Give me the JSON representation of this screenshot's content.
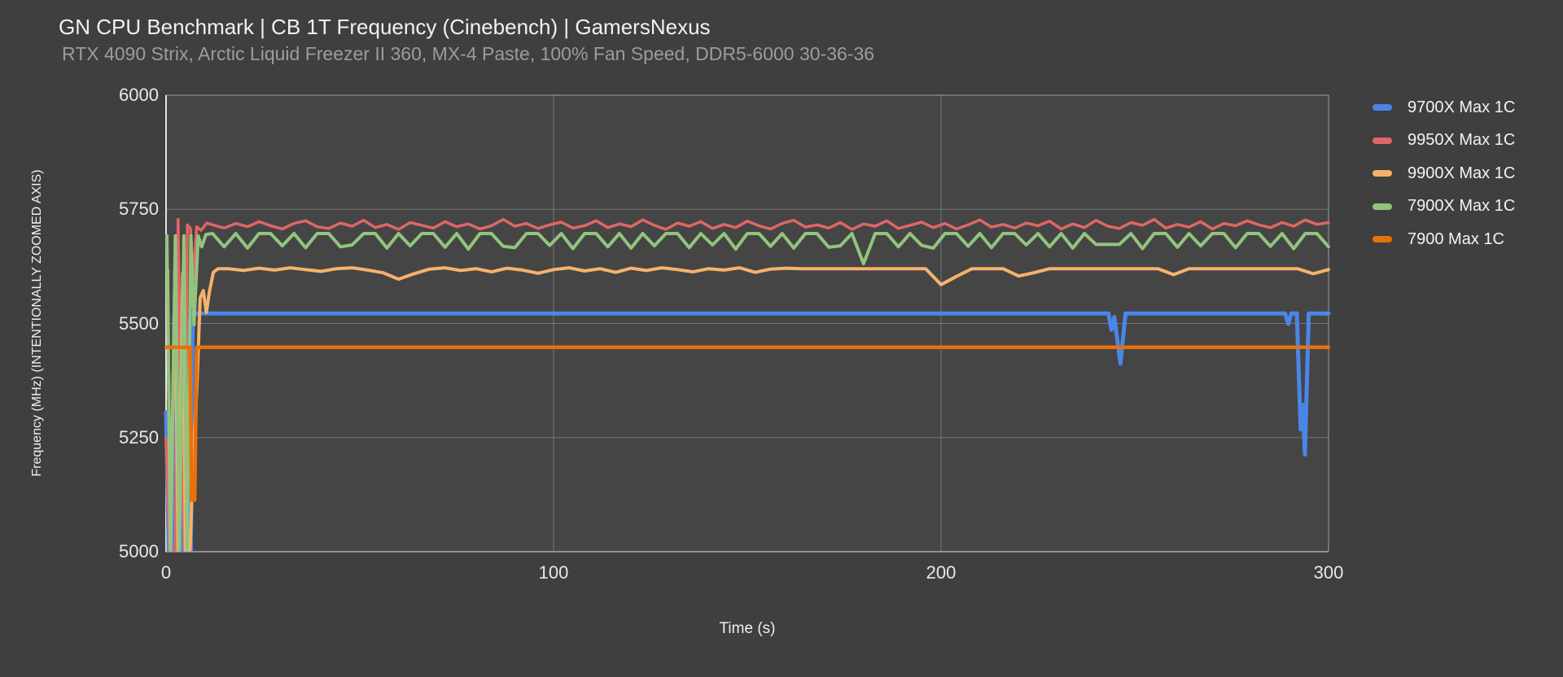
{
  "header": {
    "title": "GN CPU Benchmark | CB 1T Frequency (Cinebench) | GamersNexus",
    "subtitle": "RTX 4090 Strix, Arctic Liquid Freezer II 360, MX-4 Paste, 100% Fan Speed, DDR5-6000 30-36-36"
  },
  "colors": {
    "background": "#3f3f3f",
    "plot_background": "#454545",
    "gridline": "#757575",
    "border": "#9e9e9e",
    "axis_left": "#e3e3e3",
    "axis_bottom": "#a8a8a8",
    "title_text": "#f1f1f1",
    "subtitle_text": "#9c9c9c",
    "tick_text": "#e8e8e8",
    "legend_text": "#f3f3f3"
  },
  "chart_data": {
    "type": "line",
    "title": "GN CPU Benchmark | CB 1T Frequency (Cinebench) | GamersNexus",
    "subtitle": "RTX 4090 Strix, Arctic Liquid Freezer II 360, MX-4 Paste, 100% Fan Speed, DDR5-6000 30-36-36",
    "xlabel": "Time (s)",
    "ylabel": "Frequency (MHz) (INTENTIONALLY ZOOMED AXIS)",
    "xlim": [
      0,
      300
    ],
    "ylim": [
      5000,
      6000
    ],
    "xticks": [
      0,
      100,
      200,
      300
    ],
    "yticks": [
      5000,
      5250,
      5500,
      5750,
      6000
    ],
    "grid": true,
    "legend_position": "right",
    "series": [
      {
        "name": "9700X Max 1C",
        "color": "#4a86e8",
        "stroke_width": 5,
        "points": [
          [
            0,
            5305
          ],
          [
            0.7,
            5003
          ],
          [
            1.6,
            5003
          ],
          [
            2.1,
            5517
          ],
          [
            3.1,
            5520
          ],
          [
            3.7,
            5003
          ],
          [
            4.6,
            5003
          ],
          [
            5.1,
            5521
          ],
          [
            5.7,
            5003
          ],
          [
            6.4,
            5003
          ],
          [
            6.9,
            5522
          ],
          [
            243.2,
            5522
          ],
          [
            244.0,
            5486
          ],
          [
            244.7,
            5514
          ],
          [
            246.3,
            5412
          ],
          [
            247.6,
            5522
          ],
          [
            288.8,
            5522
          ],
          [
            289.6,
            5499
          ],
          [
            290.4,
            5522
          ],
          [
            291.8,
            5522
          ],
          [
            292.8,
            5268
          ],
          [
            293.3,
            5322
          ],
          [
            293.9,
            5213
          ],
          [
            294.9,
            5522
          ],
          [
            300,
            5522
          ]
        ]
      },
      {
        "name": "9950X Max 1C",
        "color": "#e06666",
        "stroke_width": 3.5,
        "points": [
          [
            0,
            5250
          ],
          [
            0.9,
            5003
          ],
          [
            2.4,
            5003
          ],
          [
            3.1,
            5728
          ],
          [
            3.9,
            5247
          ],
          [
            4.7,
            5003
          ],
          [
            5.5,
            5716
          ],
          [
            6.3,
            5708
          ],
          [
            7.0,
            5596
          ],
          [
            7.9,
            5712
          ],
          [
            9.0,
            5704
          ],
          [
            10.5,
            5720
          ]
        ],
        "tail": {
          "t0": 12,
          "dt": 3,
          "values": [
            5716,
            5709,
            5719,
            5712,
            5723,
            5714,
            5707,
            5719,
            5725,
            5712,
            5708,
            5720,
            5713,
            5726,
            5710,
            5717,
            5706,
            5721,
            5715,
            5709,
            5723,
            5712,
            5718,
            5707,
            5714,
            5728,
            5713,
            5719,
            5708,
            5716,
            5722,
            5709,
            5714,
            5725,
            5710,
            5718,
            5712,
            5727,
            5715,
            5706,
            5720,
            5713,
            5723,
            5708,
            5717,
            5710,
            5724,
            5714,
            5707,
            5719,
            5726,
            5711,
            5716,
            5709,
            5721,
            5706,
            5718,
            5713,
            5725,
            5708,
            5715,
            5722,
            5710,
            5719,
            5707,
            5716,
            5727,
            5711,
            5717,
            5709,
            5720,
            5714,
            5724,
            5707,
            5718,
            5710,
            5726,
            5713,
            5708,
            5721,
            5715,
            5728,
            5709,
            5717,
            5711,
            5723,
            5707,
            5719,
            5714,
            5725,
            5716,
            5710,
            5721,
            5713,
            5727,
            5717,
            5721
          ]
        }
      },
      {
        "name": "9900X Max 1C",
        "color": "#f6b26b",
        "stroke_width": 4,
        "points": [
          [
            0.4,
            5617
          ],
          [
            1.1,
            5003
          ],
          [
            2.3,
            5617
          ],
          [
            3.1,
            5003
          ],
          [
            4.3,
            5610
          ],
          [
            5.0,
            5003
          ],
          [
            6.2,
            5003
          ],
          [
            7.0,
            5210
          ],
          [
            7.9,
            5348
          ],
          [
            8.8,
            5556
          ],
          [
            9.6,
            5572
          ],
          [
            10.4,
            5524
          ],
          [
            11.2,
            5570
          ],
          [
            12.2,
            5612
          ],
          [
            13.4,
            5620
          ]
        ],
        "tail": {
          "t0": 16,
          "dt": 4,
          "values": [
            5620,
            5616,
            5621,
            5617,
            5622,
            5618,
            5614,
            5620,
            5622,
            5617,
            5611,
            5597,
            5609,
            5619,
            5622,
            5616,
            5620,
            5613,
            5621,
            5617,
            5610,
            5618,
            5622,
            5615,
            5620,
            5612,
            5621,
            5616,
            5622,
            5618,
            5613,
            5620,
            5617,
            5622,
            5612,
            5619,
            5621,
            5620,
            5620,
            5620,
            5620,
            5620,
            5620,
            5620,
            5620,
            5620,
            5585,
            5603,
            5620,
            5620,
            5620,
            5604,
            5611,
            5620,
            5620,
            5620,
            5620,
            5620,
            5620,
            5620,
            5620,
            5607,
            5620,
            5620,
            5620,
            5620,
            5620,
            5620,
            5620,
            5620,
            5609,
            5618
          ]
        }
      },
      {
        "name": "7900X Max 1C",
        "color": "#93c47d",
        "stroke_width": 4,
        "points": [
          [
            0.2,
            5692
          ],
          [
            1.2,
            5003
          ],
          [
            2.4,
            5692
          ],
          [
            3.4,
            5003
          ],
          [
            4.6,
            5692
          ],
          [
            5.4,
            5003
          ],
          [
            6.4,
            5692
          ],
          [
            7.2,
            5497
          ],
          [
            8.3,
            5692
          ],
          [
            9.2,
            5668
          ],
          [
            10.3,
            5695
          ]
        ],
        "tail": {
          "t0": 12,
          "dt": 3,
          "values": [
            5697,
            5668,
            5697,
            5665,
            5697,
            5697,
            5670,
            5697,
            5666,
            5697,
            5697,
            5668,
            5672,
            5697,
            5697,
            5665,
            5697,
            5670,
            5697,
            5697,
            5667,
            5697,
            5663,
            5697,
            5697,
            5669,
            5666,
            5697,
            5697,
            5671,
            5697,
            5664,
            5697,
            5697,
            5668,
            5697,
            5665,
            5697,
            5670,
            5697,
            5697,
            5666,
            5697,
            5672,
            5697,
            5663,
            5697,
            5697,
            5669,
            5697,
            5665,
            5697,
            5697,
            5667,
            5670,
            5697,
            5631,
            5697,
            5697,
            5668,
            5697,
            5671,
            5665,
            5697,
            5697,
            5669,
            5697,
            5666,
            5697,
            5697,
            5672,
            5697,
            5668,
            5697,
            5665,
            5697,
            5673,
            5673,
            5673,
            5697,
            5664,
            5697,
            5697,
            5667,
            5697,
            5670,
            5697,
            5697,
            5666,
            5697,
            5697,
            5669,
            5697,
            5664,
            5697,
            5697,
            5668
          ]
        }
      },
      {
        "name": "7900 Max 1C",
        "color": "#e8710a",
        "stroke_width": 4.5,
        "points": [
          [
            0,
            5448
          ],
          [
            6.2,
            5448
          ],
          [
            6.6,
            5113
          ],
          [
            7.4,
            5113
          ],
          [
            7.9,
            5448
          ],
          [
            300,
            5448
          ]
        ]
      }
    ]
  }
}
